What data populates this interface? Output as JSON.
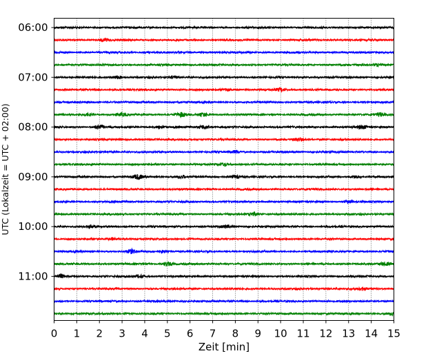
{
  "chart_data": {
    "type": "line",
    "title": "",
    "xlabel": "Zeit  [min]",
    "ylabel": "UTC (Lokalzeit = UTC + 02:00)",
    "xlim": [
      0,
      15
    ],
    "x_ticks": [
      "0",
      "1",
      "2",
      "3",
      "4",
      "5",
      "6",
      "7",
      "8",
      "9",
      "10",
      "11",
      "12",
      "13",
      "14",
      "15"
    ],
    "y_ticks": [
      "06:00",
      "07:00",
      "08:00",
      "09:00",
      "10:00",
      "11:00"
    ],
    "trace_start_times": [
      "06:00",
      "06:15",
      "06:30",
      "06:45",
      "07:00",
      "07:15",
      "07:30",
      "07:45",
      "08:00",
      "08:15",
      "08:30",
      "08:45",
      "09:00",
      "09:15",
      "09:30",
      "09:45",
      "10:00",
      "10:15",
      "10:30",
      "10:45",
      "11:00",
      "11:15",
      "11:30",
      "11:45"
    ],
    "trace_colors": [
      "#000000",
      "#ff0000",
      "#0000ff",
      "#008000"
    ],
    "grid": "vertical dotted",
    "bursts": [
      {
        "trace": 1,
        "t": 2.2,
        "amp": 1.8
      },
      {
        "trace": 3,
        "t": 14.3,
        "amp": 1.8
      },
      {
        "trace": 4,
        "t": 2.8,
        "amp": 2.0
      },
      {
        "trace": 4,
        "t": 5.3,
        "amp": 1.6
      },
      {
        "trace": 5,
        "t": 7.6,
        "amp": 1.8
      },
      {
        "trace": 5,
        "t": 10.0,
        "amp": 2.0
      },
      {
        "trace": 7,
        "t": 1.5,
        "amp": 1.6
      },
      {
        "trace": 7,
        "t": 3.0,
        "amp": 1.8
      },
      {
        "trace": 7,
        "t": 5.6,
        "amp": 2.6
      },
      {
        "trace": 7,
        "t": 6.6,
        "amp": 2.3
      },
      {
        "trace": 7,
        "t": 14.4,
        "amp": 2.2
      },
      {
        "trace": 8,
        "t": 2.0,
        "amp": 3.0
      },
      {
        "trace": 8,
        "t": 4.7,
        "amp": 1.6
      },
      {
        "trace": 8,
        "t": 6.6,
        "amp": 2.4
      },
      {
        "trace": 8,
        "t": 13.6,
        "amp": 2.0
      },
      {
        "trace": 9,
        "t": 10.8,
        "amp": 1.7
      },
      {
        "trace": 10,
        "t": 8.0,
        "amp": 1.6
      },
      {
        "trace": 11,
        "t": 7.5,
        "amp": 1.8
      },
      {
        "trace": 12,
        "t": 3.7,
        "amp": 3.0
      },
      {
        "trace": 12,
        "t": 5.6,
        "amp": 1.8
      },
      {
        "trace": 12,
        "t": 8.0,
        "amp": 2.0
      },
      {
        "trace": 12,
        "t": 13.3,
        "amp": 1.8
      },
      {
        "trace": 14,
        "t": 13.0,
        "amp": 1.7
      },
      {
        "trace": 15,
        "t": 8.8,
        "amp": 2.6
      },
      {
        "trace": 16,
        "t": 1.6,
        "amp": 1.7
      },
      {
        "trace": 16,
        "t": 7.6,
        "amp": 1.6
      },
      {
        "trace": 17,
        "t": 2.6,
        "amp": 1.6
      },
      {
        "trace": 18,
        "t": 3.4,
        "amp": 2.6
      },
      {
        "trace": 18,
        "t": 4.8,
        "amp": 1.6
      },
      {
        "trace": 19,
        "t": 5.0,
        "amp": 2.6
      },
      {
        "trace": 19,
        "t": 14.6,
        "amp": 2.0
      },
      {
        "trace": 20,
        "t": 0.3,
        "amp": 2.2
      },
      {
        "trace": 20,
        "t": 3.8,
        "amp": 1.6
      },
      {
        "trace": 21,
        "t": 13.6,
        "amp": 1.7
      },
      {
        "trace": 23,
        "t": 15.0,
        "amp": 2.2
      }
    ]
  }
}
